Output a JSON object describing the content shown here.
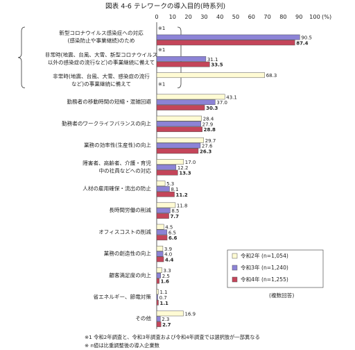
{
  "chart_data": {
    "type": "bar",
    "orientation": "horizontal",
    "title": "図表 4-6 テレワークの導入目的(時系列)",
    "unit_label": "(%)",
    "xlim": [
      0,
      100
    ],
    "x_ticks": [
      "0",
      "10",
      "20",
      "30",
      "40",
      "50",
      "60",
      "70",
      "80",
      "90",
      "100"
    ],
    "grid": false,
    "legend_position": "bottom-right",
    "categories": [
      [
        "新型コロナウイルス感染症への対応",
        "(感染防止や事業継続)のため"
      ],
      [
        "非常時(地震、台風、大雪、新型コロナウイルス",
        "以外の感染症の流行など)の事業継続に備えて"
      ],
      [
        "非常時(地震、台風、大雪、感染症の流行",
        "など)の事業継続に備えて"
      ],
      [
        "勤務者の移動時間の短縮・混雑回避"
      ],
      [
        "勤務者のワークライフバランスの向上"
      ],
      [
        "業務の効率性(生産性)の向上"
      ],
      [
        "障害者、高齢者、介護・育児",
        "中の社員などへの対応"
      ],
      [
        "人材の雇用確保・流出の防止"
      ],
      [
        "長時間労働の削減"
      ],
      [
        "オフィスコストの削減"
      ],
      [
        "業務の創造性の向上"
      ],
      [
        "顧客満足度の向上"
      ],
      [
        "省エネルギー、節電対策"
      ],
      [
        "その他"
      ]
    ],
    "series": [
      {
        "name": "令和2年",
        "n_label": "(n=1,054)",
        "color": "#fffbd4",
        "values": [
          null,
          null,
          68.3,
          43.1,
          28.4,
          29.7,
          17.0,
          5.3,
          11.8,
          4.5,
          3.9,
          3.3,
          1.1,
          16.9
        ],
        "labels": [
          "",
          "",
          "68.3",
          "43.1",
          "28.4",
          "29.7",
          "17.0",
          "5.3",
          "11.8",
          "4.5",
          "3.9",
          "3.3",
          "1.1",
          "16.9"
        ]
      },
      {
        "name": "令和3年",
        "n_label": "(n=1,240)",
        "color": "#8c83d6",
        "values": [
          90.5,
          31.1,
          null,
          37.0,
          27.9,
          27.6,
          12.2,
          8.1,
          8.5,
          6.5,
          4.0,
          2.5,
          0.7,
          2.3
        ],
        "labels": [
          "90.5",
          "31.1",
          "",
          "37.0",
          "27.9",
          "27.6",
          "12.2",
          "8.1",
          "8.5",
          "6.5",
          "4.0",
          "2.5",
          "0.7",
          "2.3"
        ]
      },
      {
        "name": "令和4年",
        "n_label": "(n=1,255)",
        "color": "#c4455a",
        "values": [
          87.4,
          33.5,
          null,
          30.3,
          28.8,
          26.3,
          13.3,
          11.2,
          7.7,
          6.6,
          4.4,
          1.6,
          1.1,
          2.7
        ],
        "labels": [
          "87.4",
          "33.5",
          "",
          "30.3",
          "28.8",
          "26.3",
          "13.3",
          "11.2",
          "7.7",
          "6.6",
          "4.4",
          "1.6",
          "1.1",
          "2.7"
        ]
      }
    ],
    "annotations": {
      "marker": "※1",
      "marker_rows": [
        0,
        1,
        2
      ],
      "multi_answer": "(複数回答)"
    },
    "notes": [
      "※1 令和2年調査と、令和3年調査および令和4年調査では選択肢が一部異なる",
      "※ n値は比重調整後の導入企業数"
    ]
  }
}
